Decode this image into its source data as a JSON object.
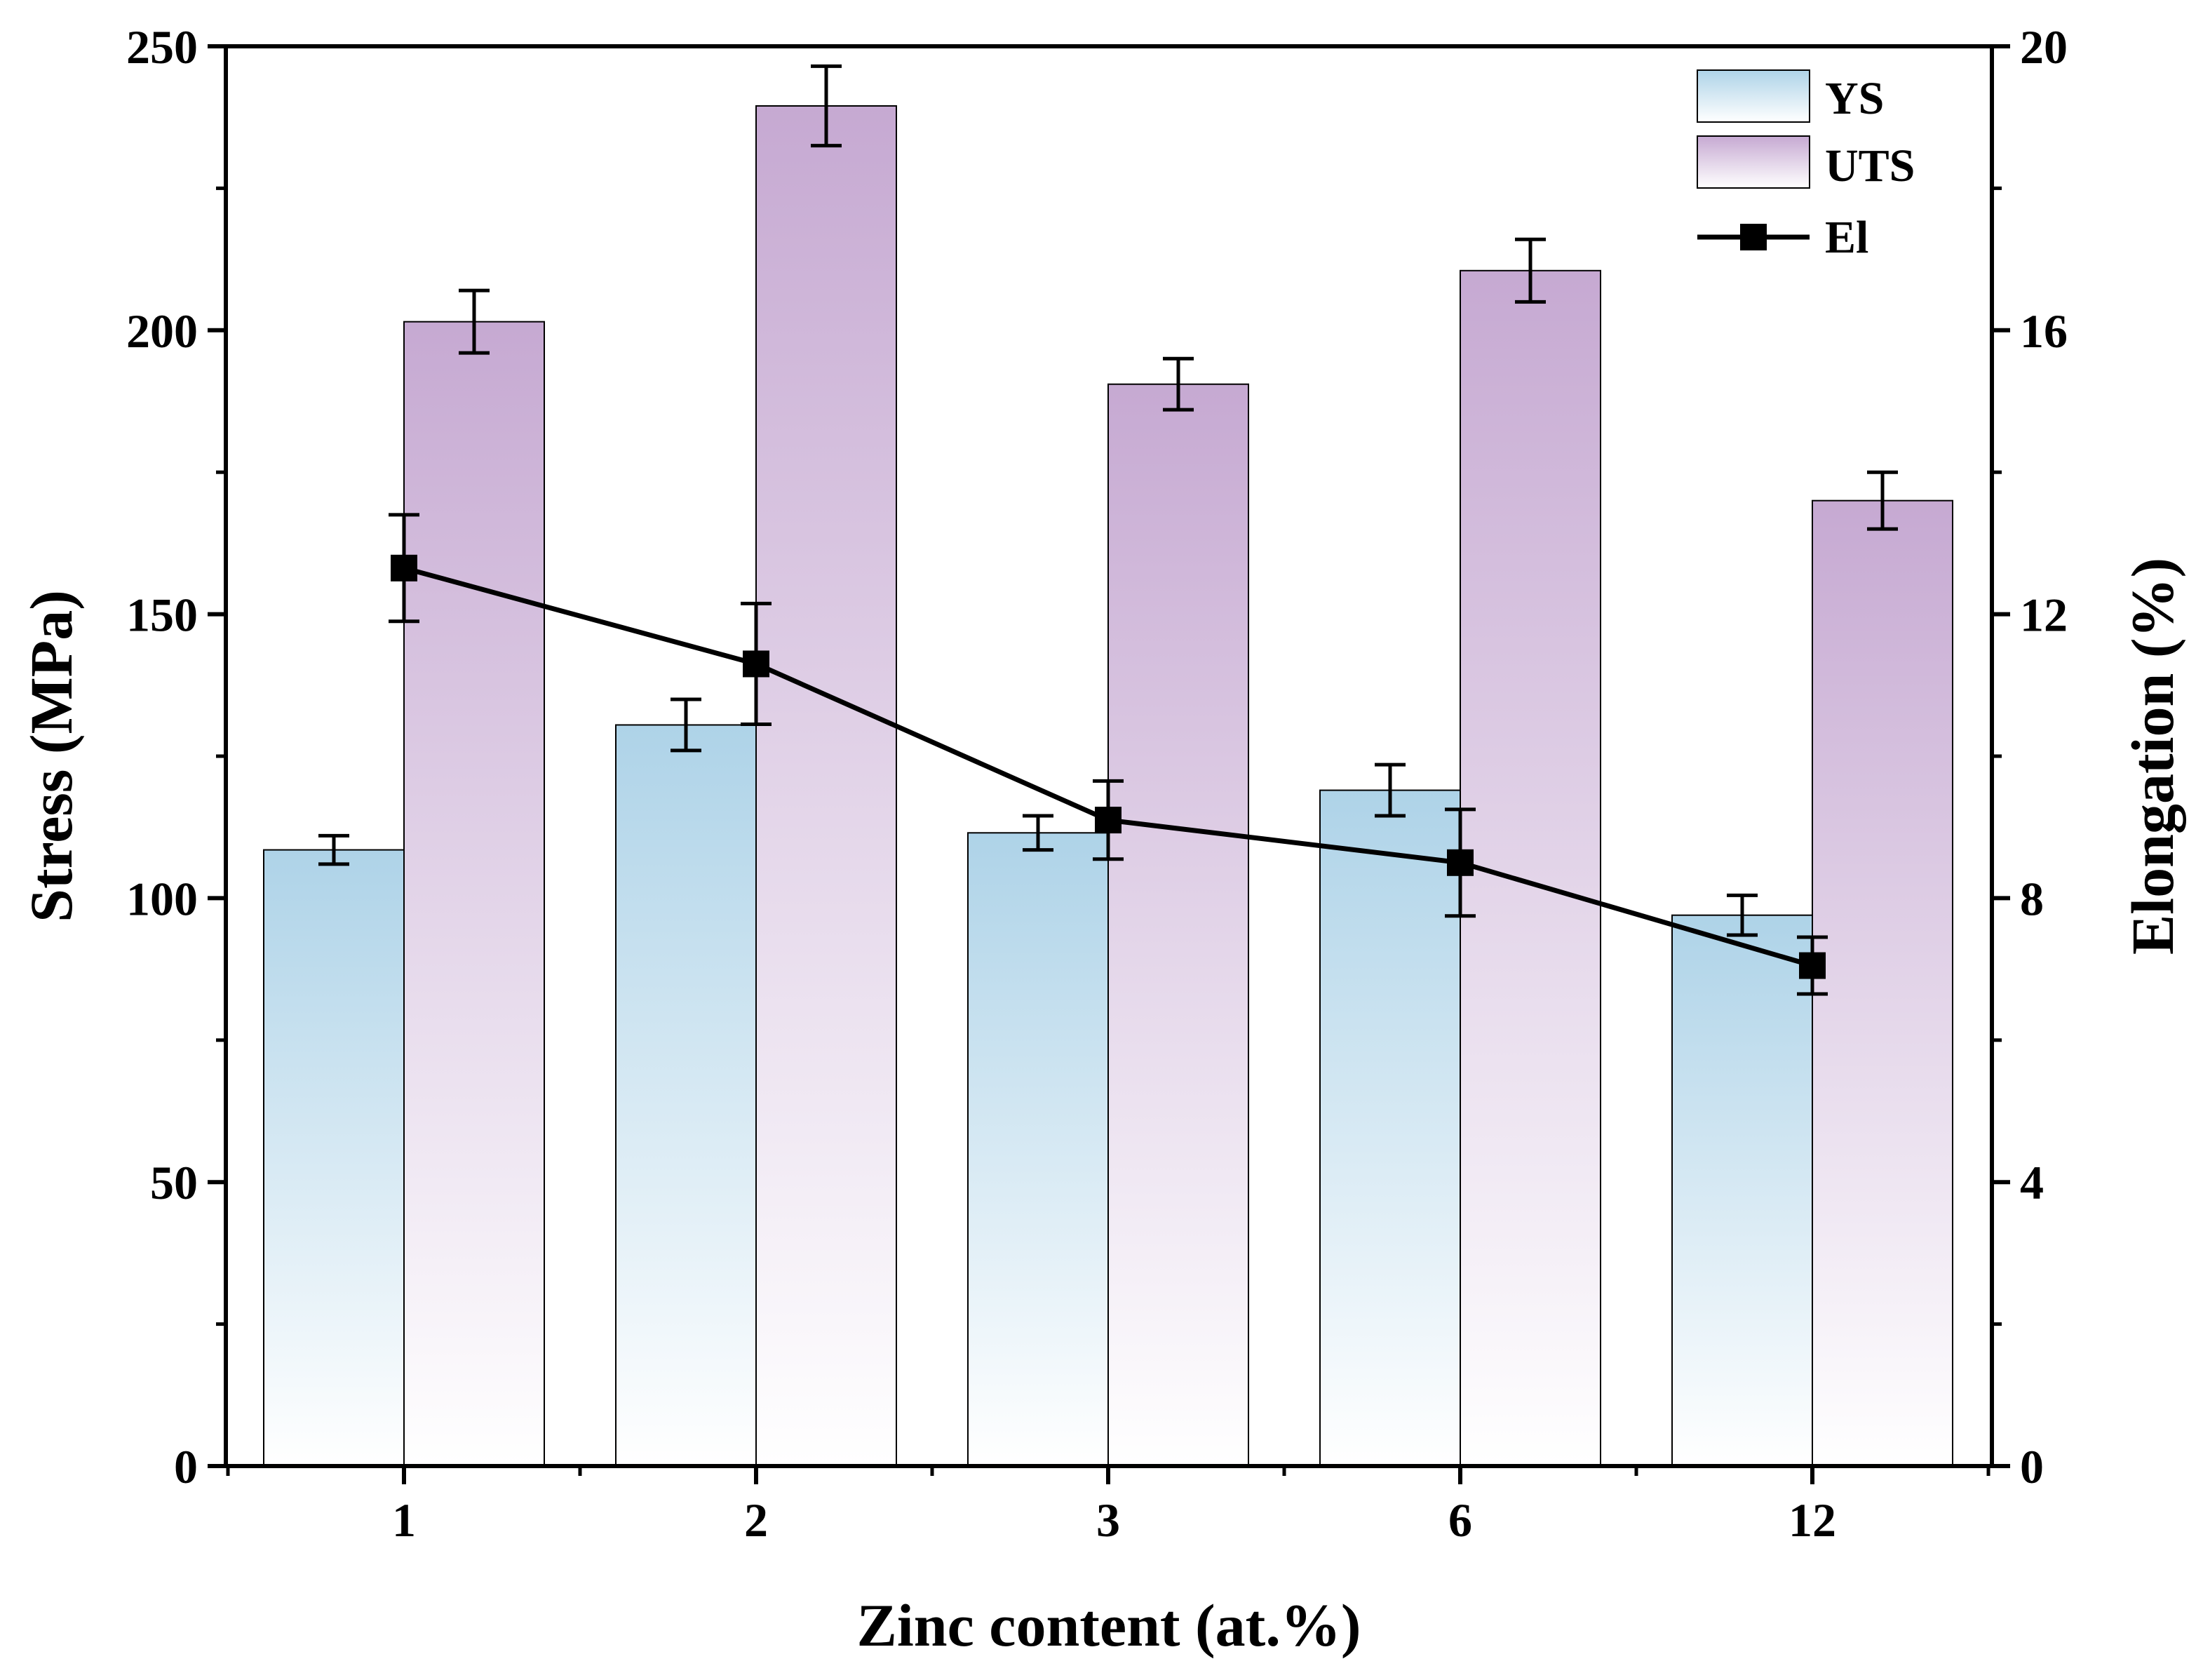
{
  "chart_data": {
    "type": "bar",
    "categories": [
      "1",
      "2",
      "3",
      "6",
      "12"
    ],
    "series": [
      {
        "name": "YS",
        "axis": "left",
        "values": [
          108.5,
          130.5,
          111.5,
          119,
          97
        ],
        "errors": [
          2.5,
          4.5,
          3,
          4.5,
          3.5
        ],
        "color_top": "#aed3e8",
        "color_bottom": "#ffffff"
      },
      {
        "name": "UTS",
        "axis": "left",
        "values": [
          201.5,
          239.5,
          190.5,
          210.5,
          170
        ],
        "errors": [
          5.5,
          7,
          4.5,
          5.5,
          5
        ],
        "color_top": "#c6a9d2",
        "color_bottom": "#ffffff"
      },
      {
        "name": "El",
        "axis": "right",
        "type": "line",
        "values": [
          12.65,
          11.3,
          9.1,
          8.5,
          7.05
        ],
        "errors": [
          0.75,
          0.85,
          0.55,
          0.75,
          0.4
        ],
        "color": "#000000"
      }
    ],
    "xlabel": "Zinc content (at.%)",
    "ylabel": "Stress (MPa)",
    "y2label": "Elongation (%)",
    "ylim": [
      0,
      250
    ],
    "y2lim": [
      0,
      20
    ],
    "yticks": [
      "0",
      "50",
      "100",
      "150",
      "200",
      "250"
    ],
    "y2ticks": [
      "0",
      "4",
      "8",
      "12",
      "16",
      "20"
    ],
    "legend": [
      "YS",
      "UTS",
      "El"
    ],
    "legend_position": "top-right",
    "grid": false
  }
}
